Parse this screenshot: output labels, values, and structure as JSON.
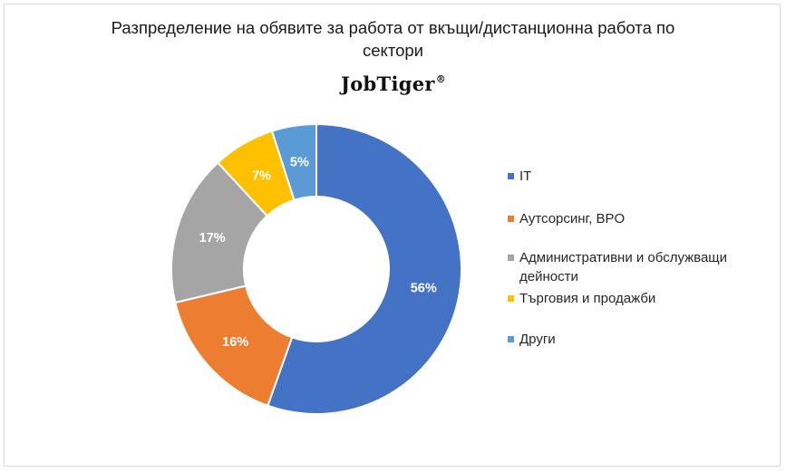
{
  "chart_data": {
    "type": "pie",
    "donut": true,
    "title": "Разпределение на обявите за работа от вкъщи/дистанционна работа по сектори",
    "title_lines": [
      "Разпределение на обявите за работа от вкъщи/дистанционна работа по",
      "сектори"
    ],
    "logo_text": "JobTiger",
    "logo_mark": "®",
    "legend_position": "right",
    "slices": [
      {
        "label": "IT",
        "value": 56,
        "value_label": "56%",
        "color": "#4472C4"
      },
      {
        "label": "Аутсорсинг, BPO",
        "value": 16,
        "value_label": "16%",
        "color": "#ED7D31"
      },
      {
        "label": "Административни и обслужващи дейности",
        "value": 17,
        "value_label": "17%",
        "color": "#A5A5A5"
      },
      {
        "label": "Търговия и продажби",
        "value": 7,
        "value_label": "7%",
        "color": "#FFC000"
      },
      {
        "label": "Други",
        "value": 5,
        "value_label": "5%",
        "color": "#5B9BD5"
      }
    ]
  }
}
